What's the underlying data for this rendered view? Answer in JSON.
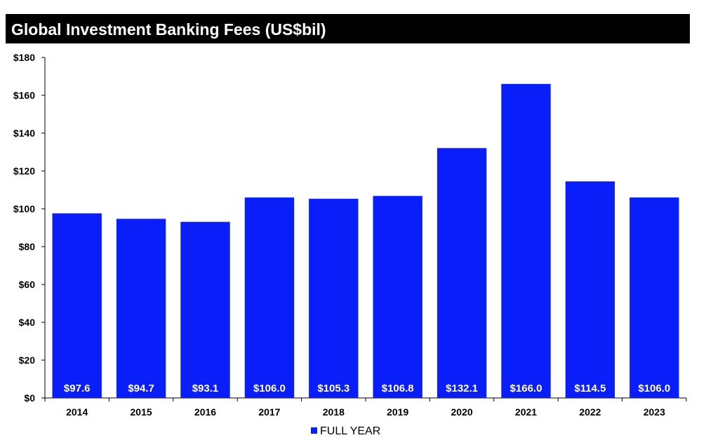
{
  "chart_data": {
    "type": "bar",
    "title": "Global Investment Banking Fees (US$bil)",
    "categories": [
      "2014",
      "2015",
      "2016",
      "2017",
      "2018",
      "2019",
      "2020",
      "2021",
      "2022",
      "2023"
    ],
    "series": [
      {
        "name": "FULL YEAR",
        "values": [
          97.6,
          94.7,
          93.1,
          106.0,
          105.3,
          106.8,
          132.1,
          166.0,
          114.5,
          106.0
        ],
        "data_labels": [
          "$97.6",
          "$94.7",
          "$93.1",
          "$106.0",
          "$105.3",
          "$106.8",
          "$132.1",
          "$166.0",
          "$114.5",
          "$106.0"
        ],
        "color": "#0a1efa"
      }
    ],
    "ylim": [
      0,
      180
    ],
    "yticks": [
      0,
      20,
      40,
      60,
      80,
      100,
      120,
      140,
      160,
      180
    ],
    "ytick_labels": [
      "$0",
      "$20",
      "$40",
      "$60",
      "$80",
      "$100",
      "$120",
      "$140",
      "$160",
      "$180"
    ],
    "xlabel": "",
    "ylabel": "",
    "grid": false,
    "legend_position": "bottom-center"
  },
  "colors": {
    "title_background": "#000000",
    "title_text": "#ffffff",
    "bar": "#0a1efa"
  }
}
